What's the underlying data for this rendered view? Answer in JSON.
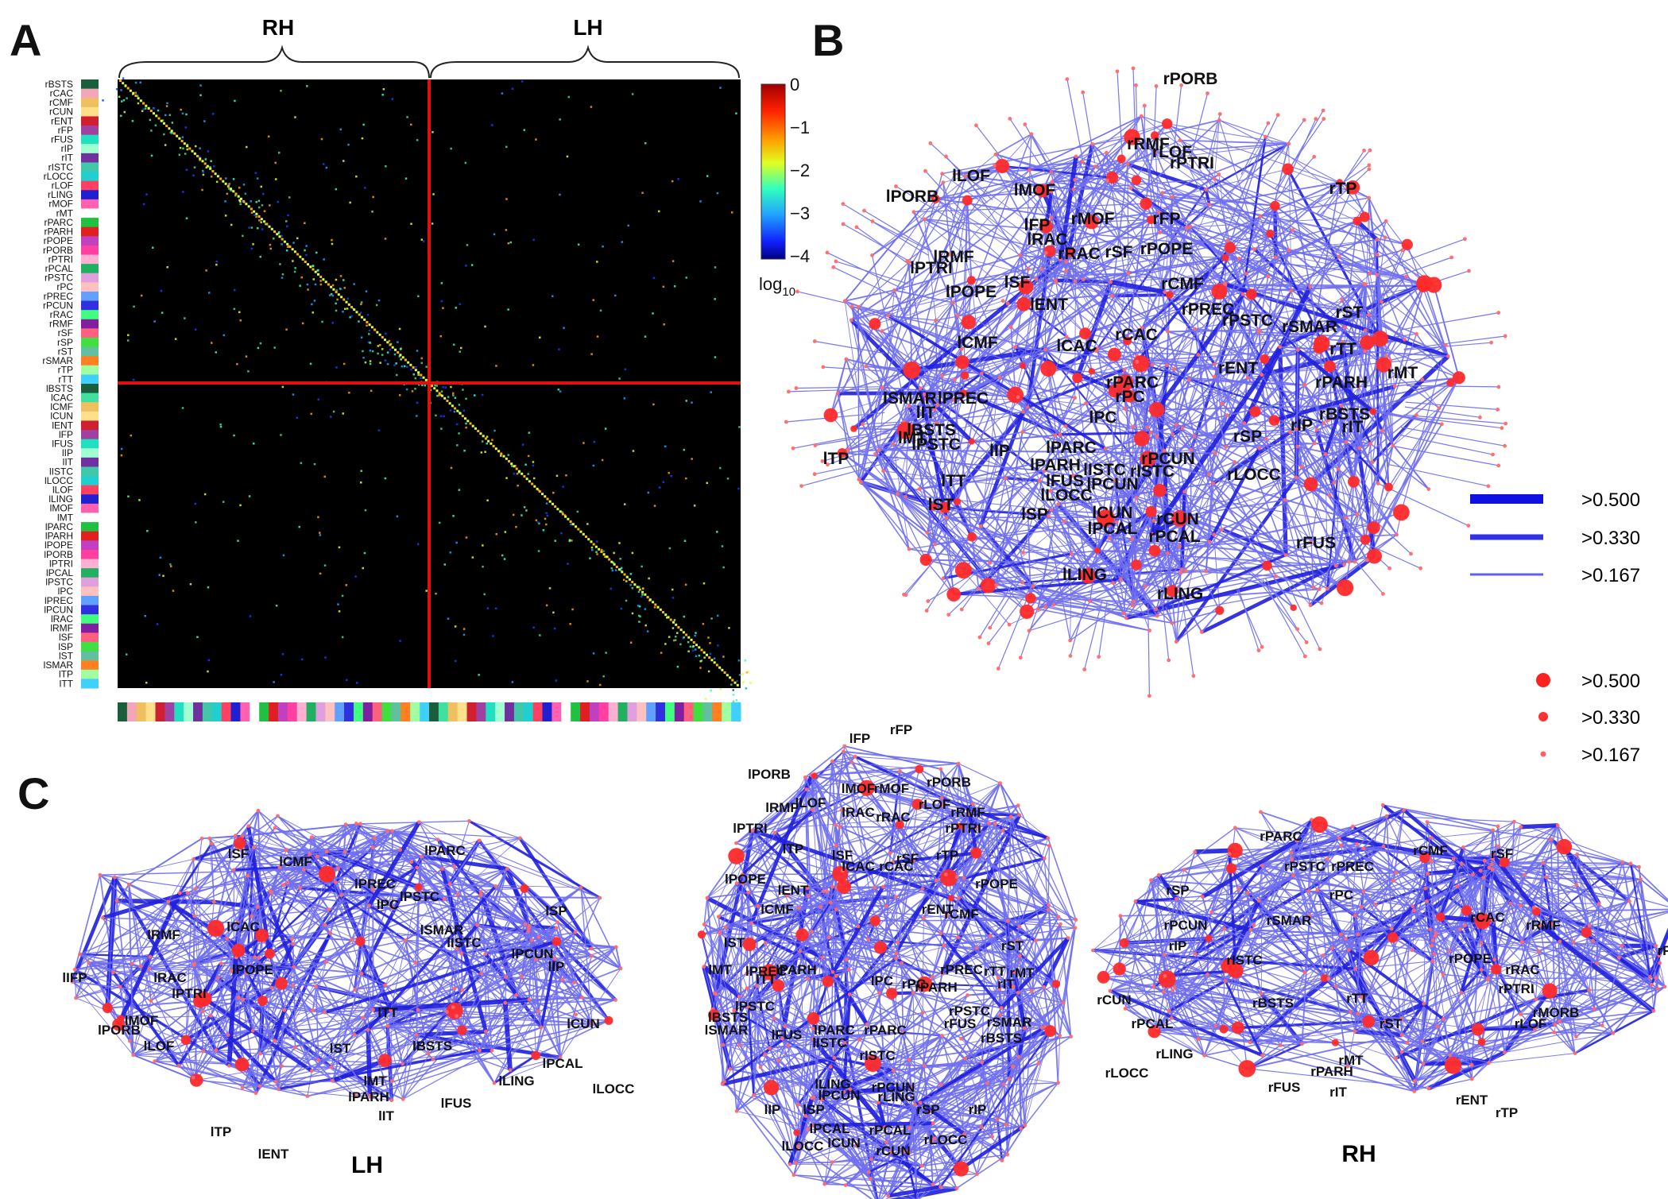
{
  "panels": {
    "a": "A",
    "b": "B",
    "c": "C"
  },
  "matrix": {
    "hemi_top_left": "RH",
    "hemi_top_right": "LH",
    "row_labels": [
      "rBSTS",
      "rCAC",
      "rCMF",
      "rCUN",
      "rENT",
      "rFP",
      "rFUS",
      "rIP",
      "rIT",
      "rISTC",
      "rLOCC",
      "rLOF",
      "rLING",
      "rMOF",
      "rMT",
      "rPARC",
      "rPARH",
      "rPOPE",
      "rPORB",
      "rPTRI",
      "rPCAL",
      "rPSTC",
      "rPC",
      "rPREC",
      "rPCUN",
      "rRAC",
      "rRMF",
      "rSF",
      "rSP",
      "rST",
      "rSMAR",
      "rTP",
      "rTT",
      "lBSTS",
      "lCAC",
      "lCMF",
      "lCUN",
      "lENT",
      "lFP",
      "lFUS",
      "lIP",
      "lIT",
      "lISTC",
      "lLOCC",
      "lLOF",
      "lLING",
      "lMOF",
      "lMT",
      "lPARC",
      "lPARH",
      "lPOPE",
      "lPORB",
      "lPTRI",
      "lPCAL",
      "lPSTC",
      "lPC",
      "lPREC",
      "lPCUN",
      "lRAC",
      "lRMF",
      "lSF",
      "lSP",
      "lST",
      "lSMAR",
      "lTP",
      "lTT"
    ],
    "row_colors": [
      "#1b5e3b",
      "#f2a6b8",
      "#f0c060",
      "#ffe08a",
      "#d02030",
      "#a040a0",
      "#20e0c0",
      "#a0ffd0",
      "#7030a0",
      "#40c8a8",
      "#20d0d0",
      "#ff4060",
      "#2020d0",
      "#ff60b0",
      "#ffffff",
      "#20c040",
      "#e02020",
      "#c040c0",
      "#ff40a0",
      "#ffb0d0",
      "#20b060",
      "#e0a0e0",
      "#ffc0c0",
      "#60a0ff",
      "#3030e0",
      "#40ff80",
      "#8020a0",
      "#ff6080",
      "#40e040",
      "#60c0a0",
      "#ff8020",
      "#a0ffa0",
      "#40d0ff",
      "#1b5e3b",
      "#40e0a0",
      "#f0c060",
      "#ffe08a",
      "#d02030",
      "#a040a0",
      "#20e0c0",
      "#a0ffd0",
      "#7030a0",
      "#40c8a8",
      "#20d0d0",
      "#ff4060",
      "#2020d0",
      "#ff60b0",
      "#ffffff",
      "#20c040",
      "#e02020",
      "#c040c0",
      "#ff40a0",
      "#ffb0d0",
      "#20b060",
      "#e0a0e0",
      "#ffc0c0",
      "#60a0ff",
      "#3030e0",
      "#40ff80",
      "#8020a0",
      "#ff6080",
      "#40e040",
      "#60c0a0",
      "#ff8020",
      "#a0ffa0",
      "#40d0ff"
    ],
    "colorbar_ticks": [
      "0",
      "−1",
      "−2",
      "−3",
      "−4"
    ],
    "colorbar_label": "log",
    "colorbar_label_sub": "10",
    "colors": {
      "divider": "#e01010",
      "background": "#000000"
    }
  },
  "panel_b": {
    "labels": [
      "rPORB",
      "rRMF",
      "rLOF",
      "rPTRI",
      "lLOF",
      "lMOF",
      "lPORB",
      "lFP",
      "rMOF",
      "rFP",
      "lRAC",
      "rRAC",
      "rSF",
      "rPOPE",
      "rTP",
      "lRMF",
      "lPTRI",
      "lSF",
      "lPOPE",
      "rCMF",
      "lENT",
      "rPREC",
      "rPSTC",
      "rST",
      "rSMAR",
      "rCAC",
      "lCMF",
      "lCAC",
      "rTT",
      "rENT",
      "rMT",
      "rPARC",
      "rPARH",
      "lSMAR",
      "rPC",
      "lIT",
      "lPREC",
      "lPC",
      "rBSTS",
      "lBSTS",
      "rIT",
      "rSP",
      "rIP",
      "lMT",
      "lPSTC",
      "lPARC",
      "lIP",
      "rPCUN",
      "lTP",
      "lPARH",
      "lISTC",
      "rISTC",
      "lPCUN",
      "rLOCC",
      "lFUS",
      "lLOCC",
      "lTT",
      "lCUN",
      "rCUN",
      "lST",
      "lSP",
      "lPCAL",
      "rPCAL",
      "rFUS",
      "lLING",
      "rLING"
    ],
    "legend_edges": [
      ">0.500",
      ">0.330",
      ">0.167"
    ],
    "legend_nodes": [
      ">0.500",
      ">0.330",
      ">0.167"
    ],
    "colors": {
      "edge": "#6868ee",
      "edge_strong": "#1a1ad8",
      "node": "#ff3b3b"
    }
  },
  "panel_c": {
    "lh_labels": [
      "lSF",
      "lCMF",
      "lPARC",
      "lPREC",
      "lPSTC",
      "lPC",
      "lCAC",
      "lRMF",
      "lSP",
      "lIFP",
      "lRAC",
      "lPOPE",
      "lSMAR",
      "lISTC",
      "lPCUN",
      "lIP",
      "lPTRI",
      "lMOF",
      "lPORB",
      "lLOF",
      "lCUN",
      "lTT",
      "lST",
      "lBSTS",
      "lPCAL",
      "lMT",
      "lPARH",
      "lLING",
      "lLOCC",
      "lIT",
      "lFUS",
      "lTP",
      "lENT"
    ],
    "lh_label": "LH",
    "dorsal_labels": [
      "lFP",
      "rFP",
      "lPORB",
      "rPORB",
      "lMOF",
      "rMOF",
      "lLOF",
      "lRMF",
      "lRAC",
      "rRAC",
      "rLOF",
      "rRMF",
      "lPTRI",
      "rPTRI",
      "lTP",
      "lSF",
      "rSF",
      "rTP",
      "lCAC",
      "rCAC",
      "lPOPE",
      "rPOPE",
      "lENT",
      "rENT",
      "lCMF",
      "rCMF",
      "rST",
      "lST",
      "lMT",
      "lPREC",
      "lPARH",
      "lPC",
      "rPC",
      "rPREC",
      "rTT",
      "rMT",
      "lTT",
      "rPARH",
      "rIT",
      "lPSTC",
      "rPSTC",
      "lBSTS",
      "rSMAR",
      "lSMAR",
      "lFUS",
      "rFUS",
      "lPARC",
      "rPARC",
      "rBSTS",
      "lISTC",
      "rISTC",
      "lLING",
      "rPCUN",
      "lPCUN",
      "rLING",
      "lIP",
      "lSP",
      "rSP",
      "rIP",
      "lPCAL",
      "rPCAL",
      "lLOCC",
      "lCUN",
      "rLOCC",
      "rCUN"
    ],
    "rh_labels": [
      "rPARC",
      "rPSTC",
      "rPREC",
      "rCMF",
      "rSF",
      "rSP",
      "rPC",
      "rPCUN",
      "rSMAR",
      "rCAC",
      "rRMF",
      "rIP",
      "rISTC",
      "rPOPE",
      "rRAC",
      "rPTRI",
      "rCUN",
      "rBSTS",
      "rTT",
      "rMORB",
      "rLOF",
      "rPCAL",
      "rST",
      "rLING",
      "rMT",
      "rPARH",
      "rLOCC",
      "rFUS",
      "rIT",
      "rENT",
      "rTP",
      "rF"
    ],
    "rh_label": "RH"
  }
}
